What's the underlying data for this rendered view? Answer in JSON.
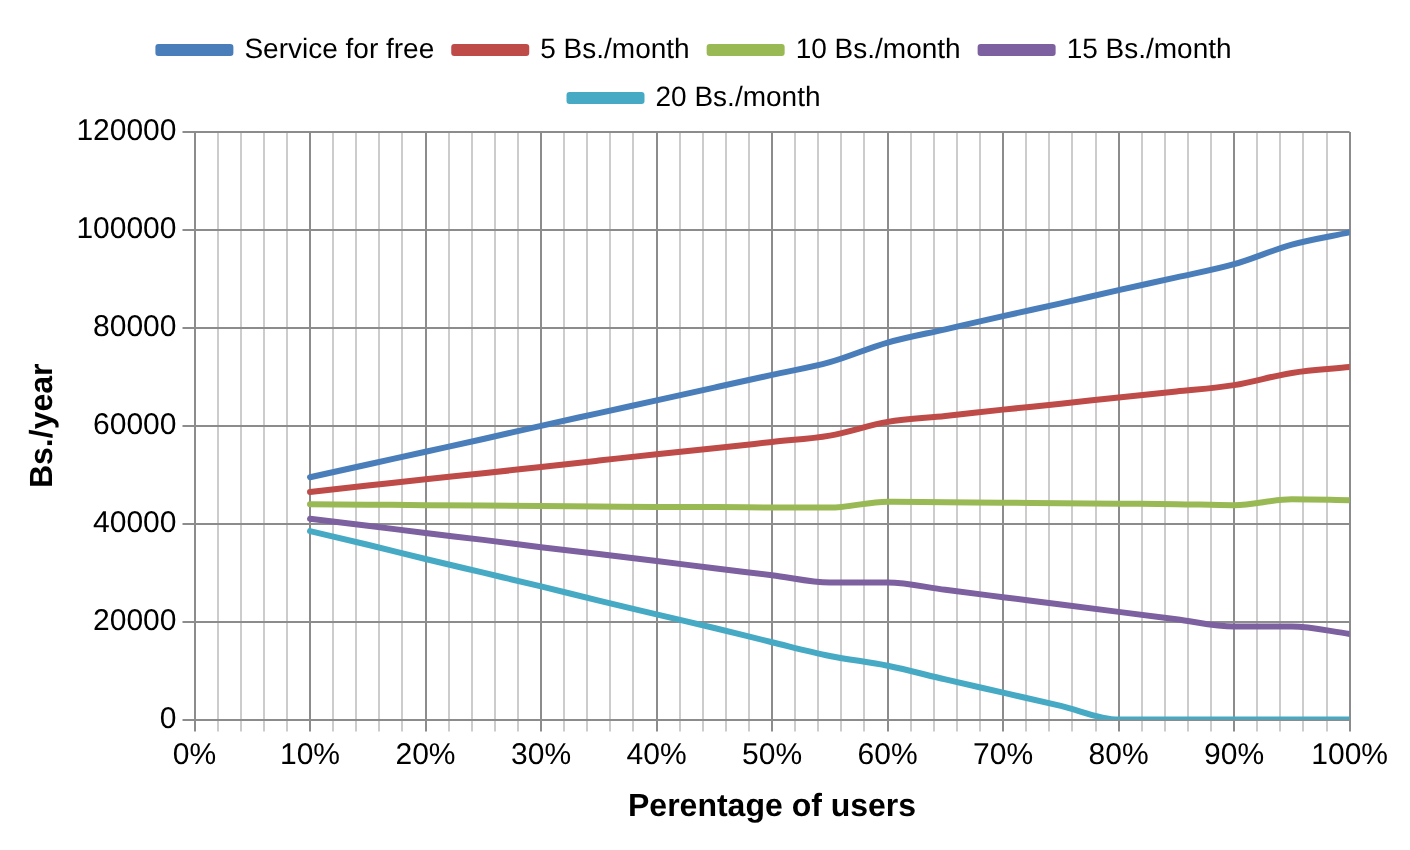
{
  "chart_data": {
    "type": "line",
    "xlabel": "Perentage of users",
    "ylabel": "Bs./year",
    "x": [
      10,
      15,
      20,
      25,
      30,
      35,
      40,
      45,
      50,
      55,
      60,
      65,
      70,
      75,
      80,
      85,
      90,
      95,
      100
    ],
    "series": [
      {
        "name": "Service for free",
        "color": "#4a7ebb",
        "values": [
          49500,
          52100,
          54700,
          57300,
          60000,
          62600,
          65200,
          67800,
          70400,
          73000,
          77000,
          79700,
          82400,
          85000,
          87700,
          90300,
          93000,
          97000,
          99500
        ]
      },
      {
        "name": "5 Bs./month",
        "color": "#be4b48",
        "values": [
          46500,
          47800,
          49100,
          50300,
          51600,
          52900,
          54200,
          55400,
          56700,
          58000,
          60800,
          62000,
          63300,
          64500,
          65800,
          67000,
          68300,
          70800,
          72000
        ]
      },
      {
        "name": "10 Bs./month",
        "color": "#98b954",
        "values": [
          44000,
          43900,
          43800,
          43700,
          43600,
          43500,
          43400,
          43400,
          43300,
          43300,
          44500,
          44400,
          44300,
          44200,
          44100,
          44000,
          43800,
          45000,
          44800
        ]
      },
      {
        "name": "15 Bs./month",
        "color": "#7d60a0",
        "values": [
          41000,
          39600,
          38100,
          36700,
          35200,
          33800,
          32400,
          30900,
          29500,
          28000,
          28000,
          26500,
          25000,
          23500,
          22000,
          20500,
          19000,
          19000,
          17500
        ]
      },
      {
        "name": "20 Bs./month",
        "color": "#46aac5",
        "values": [
          38500,
          35700,
          32800,
          30000,
          27200,
          24300,
          21500,
          18700,
          15800,
          13000,
          11000,
          8200,
          5500,
          2800,
          0,
          0,
          0,
          0,
          0
        ]
      }
    ],
    "xlim": [
      0,
      100
    ],
    "xticks": [
      {
        "value": 0,
        "label": "0%"
      },
      {
        "value": 2,
        "label": null
      },
      {
        "value": 4,
        "label": null
      },
      {
        "value": 6,
        "label": null
      },
      {
        "value": 8,
        "label": null
      },
      {
        "value": 10,
        "label": "10%"
      },
      {
        "value": 12,
        "label": null
      },
      {
        "value": 14,
        "label": null
      },
      {
        "value": 16,
        "label": null
      },
      {
        "value": 18,
        "label": null
      },
      {
        "value": 20,
        "label": "20%"
      },
      {
        "value": 22,
        "label": null
      },
      {
        "value": 24,
        "label": null
      },
      {
        "value": 26,
        "label": null
      },
      {
        "value": 28,
        "label": null
      },
      {
        "value": 30,
        "label": "30%"
      },
      {
        "value": 32,
        "label": null
      },
      {
        "value": 34,
        "label": null
      },
      {
        "value": 36,
        "label": null
      },
      {
        "value": 38,
        "label": null
      },
      {
        "value": 40,
        "label": "40%"
      },
      {
        "value": 42,
        "label": null
      },
      {
        "value": 44,
        "label": null
      },
      {
        "value": 46,
        "label": null
      },
      {
        "value": 48,
        "label": null
      },
      {
        "value": 50,
        "label": "50%"
      },
      {
        "value": 52,
        "label": null
      },
      {
        "value": 54,
        "label": null
      },
      {
        "value": 56,
        "label": null
      },
      {
        "value": 58,
        "label": null
      },
      {
        "value": 60,
        "label": "60%"
      },
      {
        "value": 62,
        "label": null
      },
      {
        "value": 64,
        "label": null
      },
      {
        "value": 66,
        "label": null
      },
      {
        "value": 68,
        "label": null
      },
      {
        "value": 70,
        "label": "70%"
      },
      {
        "value": 72,
        "label": null
      },
      {
        "value": 74,
        "label": null
      },
      {
        "value": 76,
        "label": null
      },
      {
        "value": 78,
        "label": null
      },
      {
        "value": 80,
        "label": "80%"
      },
      {
        "value": 82,
        "label": null
      },
      {
        "value": 84,
        "label": null
      },
      {
        "value": 86,
        "label": null
      },
      {
        "value": 88,
        "label": null
      },
      {
        "value": 90,
        "label": "90%"
      },
      {
        "value": 92,
        "label": null
      },
      {
        "value": 94,
        "label": null
      },
      {
        "value": 96,
        "label": null
      },
      {
        "value": 98,
        "label": null
      },
      {
        "value": 100,
        "label": "100%"
      }
    ],
    "ylim": [
      0,
      120000
    ],
    "yticks": [
      0,
      20000,
      40000,
      60000,
      80000,
      100000,
      120000
    ],
    "grid": true,
    "legend": "top",
    "marker": "none",
    "line_style": "solid"
  }
}
